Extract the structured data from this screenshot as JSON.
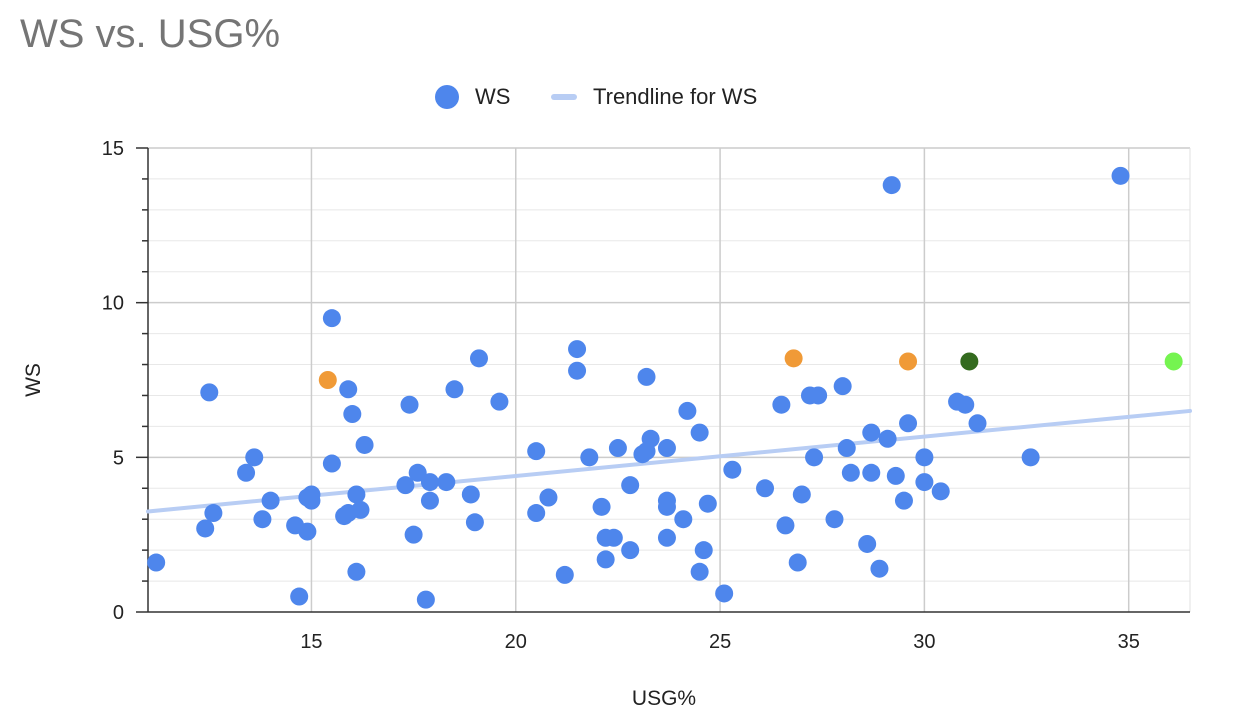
{
  "chart_data": {
    "type": "scatter",
    "title": "WS vs. USG%",
    "xlabel": "USG%",
    "ylabel": "WS",
    "xlim": [
      11,
      36.5
    ],
    "ylim": [
      0,
      15
    ],
    "x_ticks": [
      15,
      20,
      25,
      30,
      35
    ],
    "y_ticks": [
      0,
      5,
      10,
      15
    ],
    "grid": true,
    "legend_position": "top",
    "legend": [
      {
        "label": "WS",
        "kind": "dot",
        "color": "#4e86ec"
      },
      {
        "label": "Trendline for WS",
        "kind": "line",
        "color": "#b8cdf4"
      }
    ],
    "trendline": {
      "name": "Trendline for WS",
      "x": [
        11,
        36.5
      ],
      "y": [
        3.25,
        6.5
      ],
      "color": "#b8cdf4"
    },
    "series": [
      {
        "name": "WS",
        "color": "#4e86ec",
        "points": [
          [
            11.2,
            1.6
          ],
          [
            12.4,
            2.7
          ],
          [
            12.5,
            7.1
          ],
          [
            12.6,
            3.2
          ],
          [
            13.4,
            4.5
          ],
          [
            13.6,
            5.0
          ],
          [
            13.8,
            3.0
          ],
          [
            14.0,
            3.6
          ],
          [
            14.6,
            2.8
          ],
          [
            14.7,
            0.5
          ],
          [
            14.9,
            2.6
          ],
          [
            14.9,
            3.7
          ],
          [
            15.0,
            3.6
          ],
          [
            15.0,
            3.8
          ],
          [
            15.5,
            9.5
          ],
          [
            15.5,
            4.8
          ],
          [
            15.8,
            3.1
          ],
          [
            15.9,
            3.2
          ],
          [
            15.9,
            7.2
          ],
          [
            16.0,
            6.4
          ],
          [
            16.1,
            3.8
          ],
          [
            16.1,
            1.3
          ],
          [
            16.2,
            3.3
          ],
          [
            16.3,
            5.4
          ],
          [
            17.3,
            4.1
          ],
          [
            17.4,
            6.7
          ],
          [
            17.5,
            2.5
          ],
          [
            17.6,
            4.5
          ],
          [
            17.8,
            0.4
          ],
          [
            17.9,
            3.6
          ],
          [
            17.9,
            4.2
          ],
          [
            18.3,
            4.2
          ],
          [
            18.5,
            7.2
          ],
          [
            18.9,
            3.8
          ],
          [
            19.0,
            2.9
          ],
          [
            19.1,
            8.2
          ],
          [
            19.6,
            6.8
          ],
          [
            20.5,
            5.2
          ],
          [
            20.5,
            3.2
          ],
          [
            20.8,
            3.7
          ],
          [
            21.2,
            1.2
          ],
          [
            21.5,
            8.5
          ],
          [
            21.5,
            7.8
          ],
          [
            21.8,
            5.0
          ],
          [
            22.1,
            3.4
          ],
          [
            22.2,
            2.4
          ],
          [
            22.2,
            1.7
          ],
          [
            22.4,
            2.4
          ],
          [
            22.5,
            5.3
          ],
          [
            22.8,
            2.0
          ],
          [
            22.8,
            4.1
          ],
          [
            23.1,
            5.1
          ],
          [
            23.2,
            7.6
          ],
          [
            23.2,
            5.2
          ],
          [
            23.3,
            5.6
          ],
          [
            23.7,
            3.6
          ],
          [
            23.7,
            3.4
          ],
          [
            23.7,
            2.4
          ],
          [
            23.7,
            5.3
          ],
          [
            24.1,
            3.0
          ],
          [
            24.2,
            6.5
          ],
          [
            24.5,
            5.8
          ],
          [
            24.5,
            1.3
          ],
          [
            24.6,
            2.0
          ],
          [
            24.7,
            3.5
          ],
          [
            25.1,
            0.6
          ],
          [
            25.3,
            4.6
          ],
          [
            26.1,
            4.0
          ],
          [
            26.5,
            6.7
          ],
          [
            26.6,
            2.8
          ],
          [
            26.9,
            1.6
          ],
          [
            27.0,
            3.8
          ],
          [
            27.2,
            7.0
          ],
          [
            27.3,
            5.0
          ],
          [
            27.4,
            7.0
          ],
          [
            27.8,
            3.0
          ],
          [
            28.0,
            7.3
          ],
          [
            28.1,
            5.3
          ],
          [
            28.2,
            4.5
          ],
          [
            28.6,
            2.2
          ],
          [
            28.7,
            4.5
          ],
          [
            28.7,
            5.8
          ],
          [
            28.9,
            1.4
          ],
          [
            29.1,
            5.6
          ],
          [
            29.2,
            13.8
          ],
          [
            29.3,
            4.4
          ],
          [
            29.5,
            3.6
          ],
          [
            29.6,
            6.1
          ],
          [
            30.0,
            5.0
          ],
          [
            30.0,
            4.2
          ],
          [
            30.4,
            3.9
          ],
          [
            30.8,
            6.8
          ],
          [
            31.0,
            6.7
          ],
          [
            31.3,
            6.1
          ],
          [
            32.6,
            5.0
          ],
          [
            34.8,
            14.1
          ]
        ]
      },
      {
        "name": "",
        "color": "#f09a37",
        "points": [
          [
            15.4,
            7.5
          ],
          [
            26.8,
            8.2
          ],
          [
            29.6,
            8.1
          ]
        ]
      },
      {
        "name": "",
        "color": "#346b1f",
        "points": [
          [
            31.1,
            8.1
          ]
        ]
      },
      {
        "name": "",
        "color": "#75f450",
        "points": [
          [
            36.1,
            8.1
          ]
        ]
      }
    ]
  }
}
